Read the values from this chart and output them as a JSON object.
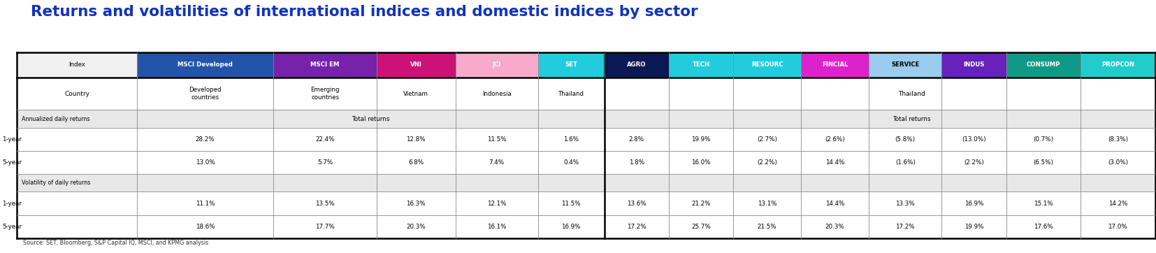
{
  "title": "Returns and volatilities of international indices and domestic indices by sector",
  "source": "Source: SET, Bloomberg, S&P Capital IQ, MSCI, and KPMG analysis",
  "header_labels": [
    "Index",
    "MSCI Developed",
    "MSCI EM",
    "VNI",
    "JCI",
    "SET",
    "AGRO",
    "TECH",
    "RESOURC",
    "FINCIAL",
    "SERVICE",
    "INDUS",
    "CONSUMP",
    "PROPCON"
  ],
  "header_colors": [
    "#f0f0f0",
    "#2255aa",
    "#7722aa",
    "#cc1177",
    "#f8aacc",
    "#22ccdd",
    "#0a1855",
    "#22ccdd",
    "#22ccdd",
    "#dd22cc",
    "#99ccee",
    "#6622bb",
    "#119988",
    "#22cccc"
  ],
  "header_text_colors": [
    "#000000",
    "#ffffff",
    "#ffffff",
    "#ffffff",
    "#ffffff",
    "#ffffff",
    "#ffffff",
    "#ffffff",
    "#ffffff",
    "#ffffff",
    "#000000",
    "#ffffff",
    "#ffffff",
    "#ffffff"
  ],
  "country_values": [
    "Developed\ncountries",
    "Emerging\ncountries",
    "Vietnam",
    "Indonesia",
    "Thailand"
  ],
  "country_span": "Thailand",
  "row1_label": "1-year",
  "row1_values": [
    "28.2%",
    "22.4%",
    "12.8%",
    "11.5%",
    "1.6%",
    "2.8%",
    "19.9%",
    "(2.7%)",
    "(2.6%)",
    "(5.8%)",
    "(13.0%)",
    "(0.7%)",
    "(8.3%)"
  ],
  "row2_label": "5-year",
  "row2_values": [
    "13.0%",
    "5.7%",
    "6.8%",
    "7.4%",
    "0.4%",
    "1.8%",
    "16.0%",
    "(2.2%)",
    "14.4%",
    "(1.6%)",
    "(2.2%)",
    "(6.5%)",
    "(3.0%)"
  ],
  "row3_label": "1-year",
  "row3_values": [
    "11.1%",
    "13.5%",
    "16.3%",
    "12.1%",
    "11.5%",
    "13.6%",
    "21.2%",
    "13.1%",
    "14.4%",
    "13.3%",
    "16.9%",
    "15.1%",
    "14.2%"
  ],
  "row4_label": "5-year",
  "row4_values": [
    "18.6%",
    "17.7%",
    "20.3%",
    "16.1%",
    "16.9%",
    "17.2%",
    "25.7%",
    "21.5%",
    "20.3%",
    "17.2%",
    "19.9%",
    "17.6%",
    "17.0%"
  ],
  "col_widths": [
    1.45,
    1.65,
    1.25,
    0.95,
    1.0,
    0.8,
    0.78,
    0.78,
    0.82,
    0.82,
    0.88,
    0.78,
    0.9,
    0.9
  ],
  "title_color": "#1133bb",
  "title_fontsize": 15.5,
  "bg_color": "#ffffff",
  "section_bg": "#e8e8e8",
  "border_color": "#888888",
  "thick_border": "#000000"
}
